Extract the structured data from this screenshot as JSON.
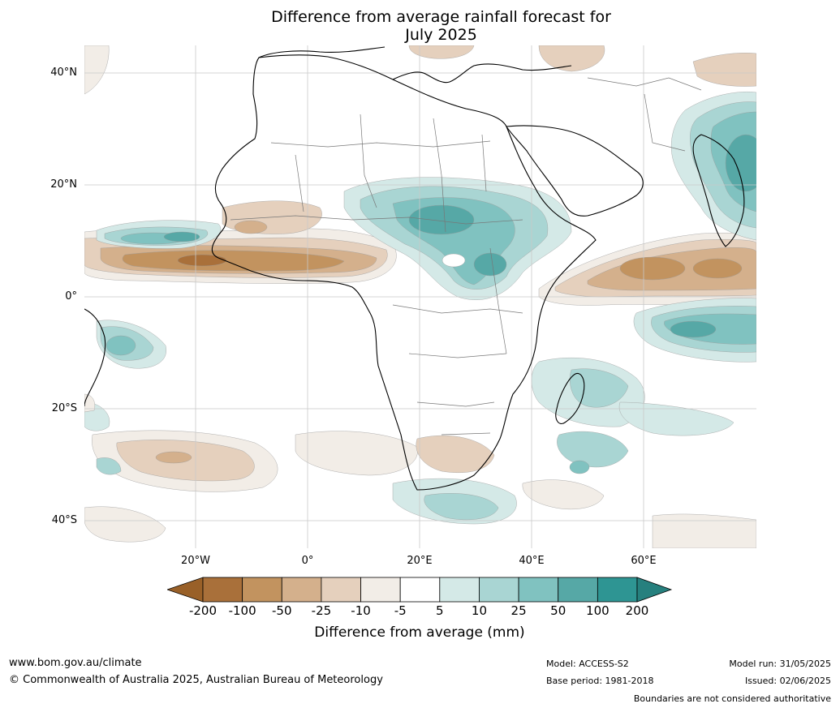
{
  "title_line1": "Difference from average rainfall forecast for",
  "title_line2": "July 2025",
  "lat_labels": [
    "40°N",
    "20°N",
    "0°",
    "20°S",
    "40°S"
  ],
  "lon_labels": [
    "20°W",
    "0°",
    "20°E",
    "40°E",
    "60°E"
  ],
  "legend": {
    "title": "Difference from average (mm)",
    "ticks": [
      "-200",
      "-100",
      "-50",
      "-25",
      "-10",
      "-5",
      "5",
      "10",
      "25",
      "50",
      "100",
      "200"
    ],
    "colors": [
      "#a9703a",
      "#c2935f",
      "#d4b08c",
      "#e5d0bd",
      "#f2ede7",
      "#ffffff",
      "#d4e9e7",
      "#a9d5d3",
      "#80c2c0",
      "#56a8a6",
      "#2e9593"
    ],
    "under_color": "#996028",
    "over_color": "#26807e"
  },
  "footer": {
    "website": "www.bom.gov.au/climate",
    "copyright": "© Commonwealth of Australia 2025, Australian Bureau of Meteorology",
    "model": "Model: ACCESS-S2",
    "base_period": "Base period: 1981-2018",
    "model_run": "Model run: 31/05/2025",
    "issued": "Issued: 02/06/2025",
    "disclaimer": "Boundaries are not considered authoritative"
  }
}
